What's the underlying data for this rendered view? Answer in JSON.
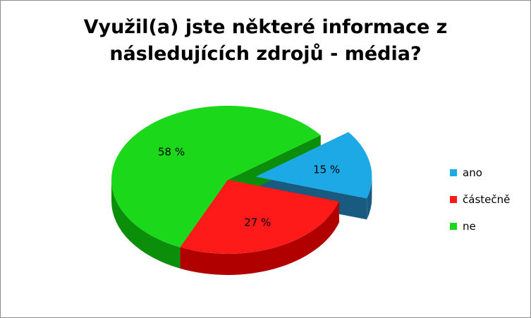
{
  "chart_data": {
    "type": "pie",
    "title_line1": "Využil(a) jste některé informace z",
    "title_line2": "následujících zdrojů - média?",
    "slices": [
      {
        "name": "ano",
        "value": 15,
        "label": "15 %",
        "color": "#1CA9E6",
        "side_color": "#185A80",
        "exploded": true
      },
      {
        "name": "částečně",
        "value": 27,
        "label": "27 %",
        "color": "#FF1A1A",
        "side_color": "#B00000",
        "exploded": false
      },
      {
        "name": "ne",
        "value": 58,
        "label": "58 %",
        "color": "#1BD81B",
        "side_color": "#0B8F0B",
        "exploded": false
      }
    ],
    "legend_position": "right",
    "style": "3d-exploded-pie"
  }
}
